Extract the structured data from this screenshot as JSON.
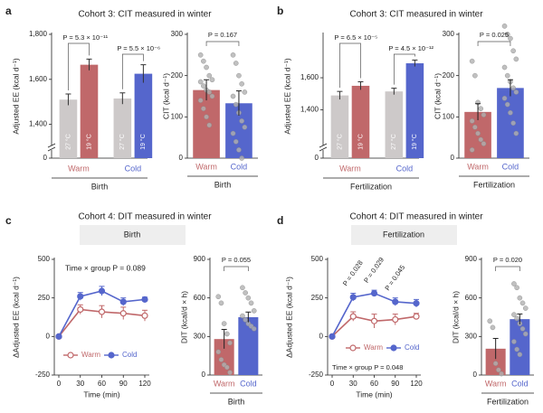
{
  "panels": [
    {
      "label": "a",
      "title": "Cohort 3: CIT measured in winter"
    },
    {
      "label": "b",
      "title": "Cohort 3: CIT measured in winter"
    },
    {
      "label": "c",
      "title": "Cohort 4: DIT measured in winter",
      "header": "Birth"
    },
    {
      "label": "d",
      "title": "Cohort 4: DIT measured in winter",
      "header": "Fertilization"
    }
  ],
  "chart_data": [
    {
      "type": "grouped_bar",
      "ylabel": "Adjusted EE (kcal d⁻¹)",
      "xlabel": "Birth",
      "groups": [
        "Warm",
        "Cold"
      ],
      "group_colors": [
        "#c0686a",
        "#5566cc"
      ],
      "bar_labels": [
        "27 °C",
        "19 °C",
        "27 °C",
        "19 °C"
      ],
      "values": [
        1510,
        1665,
        1515,
        1625
      ],
      "errors": [
        25,
        25,
        25,
        40
      ],
      "colors": [
        "#cdc9c9",
        "#c0686a",
        "#cdc9c9",
        "#5566cc"
      ],
      "ylim": [
        1250,
        1800
      ],
      "broken_axis": true,
      "yticks": [
        0,
        {
          "value": 1400,
          "label": "1,400"
        },
        {
          "value": 1600,
          "label": "1,600"
        },
        {
          "value": 1800,
          "label": "1,800"
        }
      ],
      "annotations": [
        "P = 5.3 × 10⁻¹¹",
        "P = 5.5 × 10⁻⁶"
      ]
    },
    {
      "type": "bar",
      "ylabel": "CIT (kcal d⁻¹)",
      "xlabel": "Birth",
      "categories": [
        "Warm",
        "Cold"
      ],
      "values": [
        165,
        133
      ],
      "errors": [
        25,
        30
      ],
      "colors": [
        "#c0686a",
        "#5566cc"
      ],
      "point_color": "#b0b0b0",
      "points": [
        [
          250,
          235,
          220,
          200,
          190,
          185,
          175,
          165,
          160,
          150,
          140,
          120,
          100,
          80
        ],
        [
          250,
          230,
          200,
          180,
          160,
          150,
          130,
          110,
          90,
          75,
          60,
          40,
          20,
          0
        ]
      ],
      "ylim": [
        0,
        300
      ],
      "yticks": [
        0,
        100,
        200,
        300
      ],
      "annotations": [
        "P = 0.167"
      ]
    },
    {
      "type": "grouped_bar",
      "ylabel": "Adjusted EE (kcal d⁻¹)",
      "xlabel": "Fertilization",
      "groups": [
        "Warm",
        "Cold"
      ],
      "group_colors": [
        "#c0686a",
        "#5566cc"
      ],
      "bar_labels": [
        "27 °C",
        "19 °C",
        "27 °C",
        "19 °C"
      ],
      "values": [
        1490,
        1550,
        1515,
        1690
      ],
      "errors": [
        25,
        25,
        20,
        20
      ],
      "colors": [
        "#cdc9c9",
        "#c0686a",
        "#cdc9c9",
        "#5566cc"
      ],
      "ylim": [
        1100,
        1870
      ],
      "broken_axis": true,
      "yticks": [
        0,
        {
          "value": 1400,
          "label": "1,400"
        },
        {
          "value": 1600,
          "label": "1,600"
        }
      ],
      "annotations": [
        "P = 6.5 × 10⁻⁵",
        "P = 4.5 × 10⁻¹²"
      ]
    },
    {
      "type": "bar",
      "ylabel": "CIT (kcal d⁻¹)",
      "xlabel": "Fertilization",
      "categories": [
        "Warm",
        "Cold"
      ],
      "values": [
        112,
        170
      ],
      "errors": [
        20,
        20
      ],
      "colors": [
        "#c0686a",
        "#5566cc"
      ],
      "point_color": "#b0b0b0",
      "points": [
        [
          235,
          200,
          135,
          120,
          105,
          90,
          75,
          60,
          45,
          35,
          20
        ],
        [
          320,
          300,
          290,
          260,
          240,
          220,
          200,
          185,
          170,
          160,
          145,
          130,
          110,
          85,
          60
        ]
      ],
      "ylim": [
        0,
        300
      ],
      "yticks": [
        0,
        100,
        200,
        300
      ],
      "annotations": [
        "P = 0.025"
      ]
    },
    {
      "type": "line",
      "ylabel": "ΔAdjusted EE (kcal d⁻¹)",
      "xlabel": "Time (min)",
      "x": [
        0,
        30,
        60,
        90,
        120
      ],
      "xlim": [
        0,
        120
      ],
      "xticks": [
        0,
        30,
        60,
        90,
        120
      ],
      "ylim": [
        -250,
        500
      ],
      "yticks": [
        -250,
        0,
        250,
        500
      ],
      "legend": "lower left",
      "note": "Time × group P = 0.089",
      "note_position": "top",
      "series": [
        {
          "name": "Warm",
          "color": "#c0686a",
          "marker": "open",
          "values": [
            0,
            175,
            160,
            150,
            135
          ],
          "errors": [
            0,
            30,
            40,
            40,
            35
          ]
        },
        {
          "name": "Cold",
          "color": "#5566cc",
          "marker": "filled",
          "values": [
            0,
            260,
            295,
            225,
            240
          ],
          "errors": [
            0,
            25,
            30,
            25,
            15
          ]
        }
      ]
    },
    {
      "type": "bar",
      "ylabel": "DIT (kcal/d × h)",
      "xlabel": "Birth",
      "categories": [
        "Warm",
        "Cold"
      ],
      "values": [
        280,
        450
      ],
      "errors": [
        75,
        40
      ],
      "colors": [
        "#c0686a",
        "#5566cc"
      ],
      "point_color": "#b0b0b0",
      "points": [
        [
          610,
          560,
          400,
          320,
          250,
          180,
          120,
          80,
          60,
          20
        ],
        [
          680,
          640,
          600,
          560,
          500,
          460,
          430,
          400,
          380,
          360
        ]
      ],
      "ylim": [
        0,
        900
      ],
      "yticks": [
        0,
        300,
        600,
        900
      ],
      "annotations": [
        "P = 0.055"
      ]
    },
    {
      "type": "line",
      "ylabel": "ΔAdjusted EE (kcal d⁻¹)",
      "xlabel": "Time (min)",
      "x": [
        0,
        30,
        60,
        90,
        120
      ],
      "xlim": [
        0,
        120
      ],
      "xticks": [
        0,
        30,
        60,
        90,
        120
      ],
      "ylim": [
        -250,
        500
      ],
      "yticks": [
        -250,
        0,
        250,
        500
      ],
      "legend": "lower left",
      "note": "Time × group P = 0.048",
      "note_position": "bottom",
      "point_annotations": [
        "P = 0.028",
        "P = 0.029",
        "P = 0.045"
      ],
      "series": [
        {
          "name": "Warm",
          "color": "#c0686a",
          "marker": "open",
          "values": [
            0,
            130,
            100,
            110,
            130
          ],
          "errors": [
            0,
            30,
            45,
            35,
            20
          ]
        },
        {
          "name": "Cold",
          "color": "#5566cc",
          "marker": "filled",
          "values": [
            0,
            255,
            280,
            225,
            215
          ],
          "errors": [
            0,
            25,
            20,
            25,
            25
          ]
        }
      ]
    },
    {
      "type": "bar",
      "ylabel": "DIT (kcal/d × h)",
      "xlabel": "Fertilization",
      "categories": [
        "Warm",
        "Cold"
      ],
      "values": [
        205,
        435
      ],
      "errors": [
        80,
        40
      ],
      "colors": [
        "#c0686a",
        "#5566cc"
      ],
      "point_color": "#b0b0b0",
      "points": [
        [
          420,
          370,
          90,
          40,
          10
        ],
        [
          710,
          680,
          600,
          560,
          520,
          470,
          440,
          400,
          360,
          320,
          260,
          200,
          160
        ]
      ],
      "ylim": [
        0,
        900
      ],
      "yticks": [
        0,
        300,
        600,
        900
      ],
      "annotations": [
        "P = 0.020"
      ]
    }
  ]
}
